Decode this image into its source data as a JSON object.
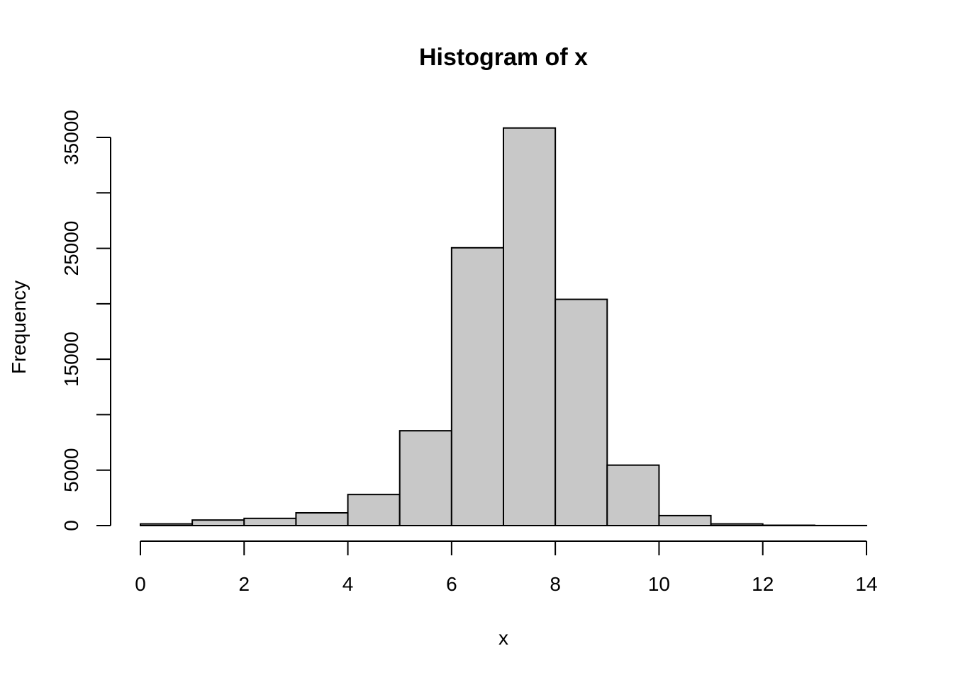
{
  "chart_data": {
    "type": "bar",
    "title": "Histogram of x",
    "xlabel": "x",
    "ylabel": "Frequency",
    "bin_edges": [
      0,
      1,
      2,
      3,
      4,
      5,
      6,
      7,
      8,
      9,
      10,
      11,
      12,
      13,
      14
    ],
    "values": [
      150,
      500,
      650,
      1150,
      2800,
      8550,
      25050,
      35850,
      20400,
      5450,
      900,
      150,
      30,
      5
    ],
    "xlim": [
      0,
      14
    ],
    "ylim": [
      0,
      35000
    ],
    "x_ticks": [
      0,
      2,
      4,
      6,
      8,
      10,
      12,
      14
    ],
    "y_ticks": [
      0,
      5000,
      10000,
      15000,
      20000,
      25000,
      30000,
      35000
    ],
    "y_tick_labels": [
      "0",
      "5000",
      "",
      "15000",
      "",
      "25000",
      "",
      "35000"
    ],
    "bar_color": "#c8c8c8",
    "grid": false,
    "legend": "none"
  }
}
